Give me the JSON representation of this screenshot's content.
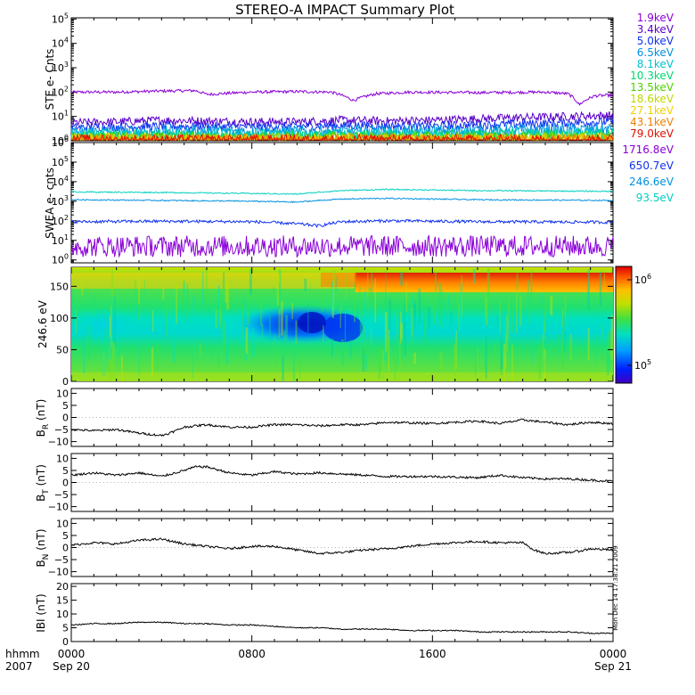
{
  "title": "STEREO-A IMPACT Summary Plot",
  "colors": {
    "trace": "#000000",
    "ste_channels": [
      "#8a00d8",
      "#5a00c8",
      "#1030f0",
      "#0090e0",
      "#00c0d0",
      "#00d870",
      "#50d000",
      "#c0d800",
      "#f0d000",
      "#f08000",
      "#e01000"
    ],
    "swea_channels": [
      "#8a00d8",
      "#1030f0",
      "#0090e0",
      "#00d0c0"
    ],
    "colorbar": [
      "#4000c0",
      "#0020ff",
      "#00a0ff",
      "#00e0c0",
      "#40e040",
      "#c0e000",
      "#ffc000",
      "#ff6000",
      "#e00000"
    ]
  },
  "panels": {
    "ste": {
      "ylabel": "STE e- Cnts",
      "ticks": [
        {
          "b": "10",
          "e": "5"
        },
        {
          "b": "10",
          "e": "4"
        },
        {
          "b": "10",
          "e": "3"
        },
        {
          "b": "10",
          "e": "2"
        },
        {
          "b": "10",
          "e": "1"
        },
        {
          "b": "10",
          "e": "0"
        }
      ],
      "legend": [
        "1.9keV",
        "3.4keV",
        "5.0keV",
        "6.5keV",
        "8.1keV",
        "10.3keV",
        "13.5keV",
        "18.6keV",
        "27.1keV",
        "43.1keV",
        "79.0keV"
      ]
    },
    "swea": {
      "ylabel": "SWEA e- cnts",
      "ticks": [
        {
          "b": "10",
          "e": "6"
        },
        {
          "b": "10",
          "e": "5"
        },
        {
          "b": "10",
          "e": "4"
        },
        {
          "b": "10",
          "e": "3"
        },
        {
          "b": "10",
          "e": "2"
        },
        {
          "b": "10",
          "e": "1"
        },
        {
          "b": "10",
          "e": "0"
        }
      ],
      "legend": [
        "1716.8eV",
        "650.7eV",
        "246.6eV",
        "93.5eV"
      ]
    },
    "pad": {
      "ylabel": "246.6 eV",
      "ticks": [
        "150",
        "100",
        "50",
        "0"
      ],
      "colorbar_ticks": [
        {
          "b": "10",
          "e": "6"
        },
        {
          "b": "10",
          "e": "5"
        }
      ]
    },
    "br": {
      "ylabel_main": "B",
      "ylabel_sub": "R",
      "ylabel_unit": " (nT)",
      "ticks": [
        "10",
        "5",
        "0",
        "−5",
        "−10"
      ]
    },
    "bt": {
      "ylabel_main": "B",
      "ylabel_sub": "T",
      "ylabel_unit": " (nT)",
      "ticks": [
        "10",
        "5",
        "0",
        "−5",
        "−10"
      ]
    },
    "bn": {
      "ylabel_main": "B",
      "ylabel_sub": "N",
      "ylabel_unit": " (nT)",
      "ticks": [
        "10",
        "5",
        "0",
        "−5",
        "−10"
      ]
    },
    "bmag": {
      "ylabel": "IBI (nT)",
      "ticks": [
        "20",
        "15",
        "10",
        "5",
        "0"
      ]
    }
  },
  "xaxis": {
    "row1_label": "hhmm",
    "row2_label": "2007",
    "ticks": [
      "0000",
      "0800",
      "1600",
      "0000"
    ],
    "dates": [
      "Sep 20",
      "Sep 21"
    ]
  },
  "stamp": "Mon Dec 14 17:38:21 2009",
  "chart_data": [
    {
      "type": "line",
      "title": "STEREO-A IMPACT Summary Plot",
      "ylabel": "STE e- Cnts",
      "yscale": "log",
      "ylim": [
        1,
        100000
      ],
      "xlim_hours": [
        0,
        24
      ],
      "series": [
        {
          "name": "1.9keV",
          "x": [
            0,
            2,
            4,
            5.5,
            6,
            8,
            10,
            11.5,
            12.5,
            13.5,
            15,
            18,
            21,
            22,
            22.5,
            23.2,
            24
          ],
          "y": [
            100,
            100,
            110,
            115,
            80,
            100,
            105,
            100,
            45,
            85,
            100,
            95,
            100,
            85,
            30,
            70,
            75
          ]
        },
        {
          "name": "3.4keV",
          "x": [
            0,
            2,
            4,
            6,
            8,
            10,
            12,
            14,
            16,
            18,
            20,
            22,
            24
          ],
          "y": [
            5.5,
            6,
            7,
            6.5,
            6,
            6,
            7,
            6.5,
            7,
            8,
            9,
            10,
            11
          ]
        },
        {
          "name": "5.0keV",
          "x": [
            0,
            4,
            8,
            12,
            16,
            20,
            24
          ],
          "y": [
            3.5,
            4,
            3.8,
            4.2,
            4,
            5,
            6
          ]
        },
        {
          "name": "6.5keV",
          "x": [
            0,
            6,
            12,
            18,
            24
          ],
          "y": [
            2.3,
            2.5,
            2.4,
            2.6,
            3
          ]
        },
        {
          "name": "8.1keV",
          "x": [
            0,
            6,
            12,
            18,
            24
          ],
          "y": [
            1.8,
            1.9,
            1.8,
            2,
            2.2
          ]
        },
        {
          "name": "10.3keV",
          "x": [
            0,
            6,
            12,
            18,
            24
          ],
          "y": [
            1.5,
            1.5,
            1.5,
            1.6,
            1.7
          ]
        },
        {
          "name": "13.5keV",
          "x": [
            0,
            12,
            24
          ],
          "y": [
            1.3,
            1.3,
            1.4
          ]
        },
        {
          "name": "18.6keV",
          "x": [
            0,
            12,
            24
          ],
          "y": [
            1.2,
            1.2,
            1.2
          ]
        },
        {
          "name": "27.1keV",
          "x": [
            0,
            12,
            24
          ],
          "y": [
            1.1,
            1.1,
            1.1
          ]
        },
        {
          "name": "43.1keV",
          "x": [
            0,
            12,
            24
          ],
          "y": [
            1.05,
            1.05,
            1.05
          ]
        },
        {
          "name": "79.0keV",
          "x": [
            0,
            12,
            24
          ],
          "y": [
            1.02,
            1.02,
            1.02
          ]
        }
      ]
    },
    {
      "type": "line",
      "ylabel": "SWEA e- cnts",
      "yscale": "log",
      "ylim": [
        1,
        1000000
      ],
      "xlim_hours": [
        0,
        24
      ],
      "series": [
        {
          "name": "1716.8eV",
          "x": [
            0,
            6,
            12,
            18,
            24
          ],
          "y": [
            5,
            5,
            5,
            5,
            5
          ]
        },
        {
          "name": "650.7eV",
          "x": [
            0,
            4,
            8,
            10,
            11,
            12,
            14,
            18,
            24
          ],
          "y": [
            90,
            95,
            90,
            70,
            55,
            90,
            100,
            90,
            85
          ]
        },
        {
          "name": "246.6eV",
          "x": [
            0,
            4,
            8,
            10,
            12,
            14,
            18,
            24
          ],
          "y": [
            1200,
            1100,
            1000,
            900,
            1300,
            1400,
            1200,
            1100
          ]
        },
        {
          "name": "93.5eV",
          "x": [
            0,
            4,
            8,
            10,
            12,
            14,
            18,
            24
          ],
          "y": [
            3000,
            2800,
            2500,
            2300,
            3500,
            4000,
            3500,
            3200
          ]
        }
      ]
    },
    {
      "type": "heatmap",
      "ylabel": "246.6 eV",
      "ylim": [
        0,
        180
      ],
      "xlim_hours": [
        0,
        24
      ],
      "colorscale": "log",
      "colorbar_range": [
        50000,
        1500000
      ],
      "features": [
        {
          "hours": [
            0,
            13
          ],
          "pitch_angle": [
            60,
            110
          ],
          "level": "low"
        },
        {
          "hours": [
            7.5,
            12.5
          ],
          "pitch_angle": [
            70,
            105
          ],
          "level": "minimum"
        },
        {
          "hours": [
            12,
            24
          ],
          "pitch_angle": [
            140,
            175
          ],
          "level": "high"
        }
      ]
    },
    {
      "type": "line",
      "ylabel": "B_R (nT)",
      "ylim": [
        -10,
        10
      ],
      "xlim_hours": [
        0,
        24
      ],
      "series": [
        {
          "x": [
            0,
            1,
            2,
            3,
            4,
            4.5,
            5,
            6,
            7,
            8,
            9,
            10,
            11,
            12,
            13,
            14,
            16,
            18,
            19,
            20,
            21,
            22,
            23,
            24
          ],
          "y": [
            -5,
            -5.5,
            -5,
            -6.5,
            -7.5,
            -6,
            -4,
            -3,
            -4,
            -4,
            -3,
            -3,
            -3.5,
            -3,
            -3,
            -2,
            -2.5,
            -1.5,
            -2.5,
            -1,
            -2,
            -3,
            -2,
            -2.5
          ]
        }
      ]
    },
    {
      "type": "line",
      "ylabel": "B_T (nT)",
      "ylim": [
        -10,
        10
      ],
      "xlim_hours": [
        0,
        24
      ],
      "series": [
        {
          "x": [
            0,
            1,
            2,
            3,
            4,
            5,
            5.5,
            6,
            7,
            8,
            9,
            10,
            11,
            12,
            14,
            16,
            18,
            19,
            20,
            21,
            22,
            23,
            24
          ],
          "y": [
            3,
            4,
            3,
            4,
            2.5,
            5,
            6.5,
            6.5,
            4,
            3,
            4.5,
            3.5,
            4,
            3.5,
            2.5,
            2.5,
            2,
            3,
            2,
            1.5,
            1.5,
            1,
            0.5
          ]
        }
      ]
    },
    {
      "type": "line",
      "ylabel": "B_N (nT)",
      "ylim": [
        -10,
        10
      ],
      "xlim_hours": [
        0,
        24
      ],
      "series": [
        {
          "x": [
            0,
            1,
            2,
            3,
            4,
            5,
            6,
            7,
            8,
            9,
            10,
            11,
            12,
            13,
            14,
            15,
            16,
            17,
            18,
            19,
            20,
            20.5,
            21,
            22,
            22.5,
            23,
            24
          ],
          "y": [
            1,
            2,
            1.5,
            3,
            3.5,
            1.5,
            0.5,
            -0.5,
            0.5,
            0.5,
            -1,
            -2.5,
            -2,
            -1,
            -0.5,
            0.5,
            1.5,
            2,
            2.5,
            2,
            2,
            -1,
            -2.5,
            -2,
            -1.5,
            -0.5,
            -1
          ]
        }
      ]
    },
    {
      "type": "line",
      "ylabel": "IBI (nT)",
      "ylim": [
        0,
        20
      ],
      "xlim_hours": [
        0,
        24
      ],
      "series": [
        {
          "x": [
            0,
            1,
            2,
            3,
            4,
            5,
            6,
            7,
            8,
            9,
            10,
            11,
            12,
            13,
            14,
            15,
            16,
            17,
            18,
            19,
            20,
            21,
            22,
            23,
            24
          ],
          "y": [
            6,
            6.5,
            6.5,
            7,
            7,
            6.5,
            6.5,
            6,
            6,
            5.5,
            5,
            5,
            4.5,
            4.5,
            4.5,
            4,
            4,
            4,
            3.5,
            3.5,
            3.5,
            3.5,
            3.5,
            3,
            3
          ]
        }
      ]
    }
  ]
}
